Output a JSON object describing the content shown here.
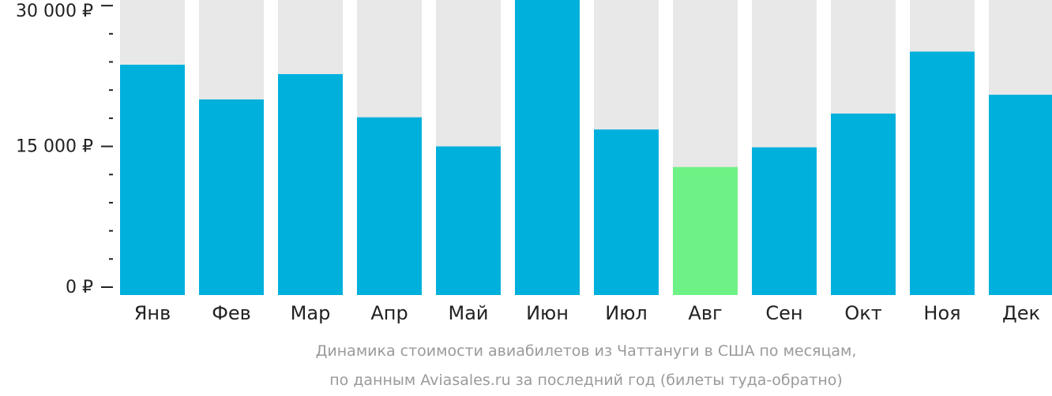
{
  "chart_data": {
    "type": "bar",
    "categories": [
      "Янв",
      "Фев",
      "Мар",
      "Апр",
      "Май",
      "Июн",
      "Июл",
      "Авг",
      "Сен",
      "Окт",
      "Ноя",
      "Дек"
    ],
    "values": [
      23700,
      20000,
      22700,
      18100,
      15000,
      30600,
      16800,
      12800,
      14900,
      18500,
      25100,
      20500
    ],
    "highlight_index": 7,
    "ylim": [
      0,
      30600
    ],
    "y_ticks": [
      {
        "value": 0,
        "label": "0 ₽"
      },
      {
        "value": 15000,
        "label": "15 000 ₽"
      },
      {
        "value": 30000,
        "label": "30 000 ₽"
      }
    ],
    "minor_tick_step": 3000,
    "caption_lines": [
      "Динамика стоимости авиабилетов из Чаттануги в США по месяцам,",
      "по данным Aviasales.ru за последний год (билеты туда-обратно)"
    ],
    "colors": {
      "bar": "#00b0dc",
      "highlight": "#6ef285",
      "background_bar": "#e8e8e8",
      "axis": "#222222",
      "caption": "#9a9a9a"
    }
  }
}
